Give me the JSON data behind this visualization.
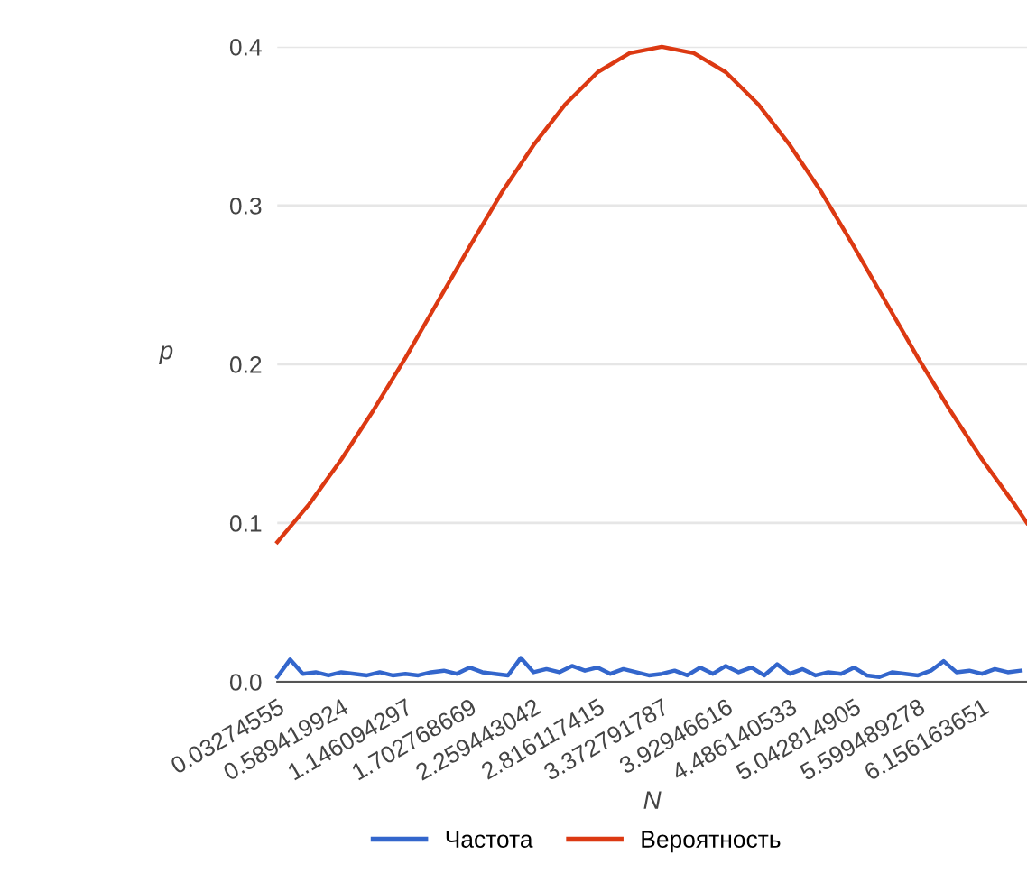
{
  "chart_data": {
    "type": "line",
    "xlabel": "N",
    "ylabel": "p",
    "xlim": [
      0.03274555,
      6.546
    ],
    "xticks": [
      {
        "value": 0.03274555,
        "label": "0.03274555"
      },
      {
        "value": 0.589419924,
        "label": "0.589419924"
      },
      {
        "value": 1.146094297,
        "label": "1.146094297"
      },
      {
        "value": 1.702768669,
        "label": "1.702768669"
      },
      {
        "value": 2.259443042,
        "label": "2.259443042"
      },
      {
        "value": 2.816117415,
        "label": "2.816117415"
      },
      {
        "value": 3.372791787,
        "label": "3.372791787"
      },
      {
        "value": 3.92946616,
        "label": "3.92946616"
      },
      {
        "value": 4.486140533,
        "label": "4.486140533"
      },
      {
        "value": 5.042814905,
        "label": "5.042814905"
      },
      {
        "value": 5.599489278,
        "label": "5.599489278"
      },
      {
        "value": 6.156163651,
        "label": "6.156163651"
      }
    ],
    "ylim": [
      0,
      0.4
    ],
    "yticks": [
      {
        "value": 0,
        "label": "0.0"
      },
      0.1,
      0.2,
      0.3,
      0.4
    ],
    "grid": "y",
    "legend": "bottom",
    "marker": "none",
    "line_style": "solid",
    "series": [
      {
        "name": "Частота",
        "color": "#3366cc",
        "x": [
          0.033,
          0.144,
          0.255,
          0.367,
          0.478,
          0.589,
          0.701,
          0.812,
          0.923,
          1.035,
          1.146,
          1.257,
          1.369,
          1.48,
          1.591,
          1.703,
          1.814,
          1.925,
          2.037,
          2.148,
          2.259,
          2.371,
          2.482,
          2.593,
          2.705,
          2.816,
          2.927,
          3.039,
          3.15,
          3.261,
          3.373,
          3.484,
          3.595,
          3.707,
          3.818,
          3.929,
          4.041,
          4.152,
          4.263,
          4.375,
          4.486,
          4.597,
          4.709,
          4.82,
          4.931,
          5.043,
          5.154,
          5.265,
          5.377,
          5.488,
          5.599,
          5.711,
          5.822,
          5.933,
          6.045,
          6.156,
          6.267,
          6.379,
          6.49
        ],
        "values": [
          0.003,
          0.014,
          0.005,
          0.006,
          0.004,
          0.006,
          0.005,
          0.004,
          0.006,
          0.004,
          0.005,
          0.004,
          0.006,
          0.007,
          0.005,
          0.009,
          0.006,
          0.005,
          0.004,
          0.015,
          0.006,
          0.008,
          0.006,
          0.01,
          0.007,
          0.009,
          0.005,
          0.008,
          0.006,
          0.004,
          0.005,
          0.007,
          0.004,
          0.009,
          0.005,
          0.01,
          0.006,
          0.009,
          0.004,
          0.011,
          0.005,
          0.008,
          0.004,
          0.006,
          0.005,
          0.009,
          0.004,
          0.003,
          0.006,
          0.005,
          0.004,
          0.007,
          0.013,
          0.006,
          0.007,
          0.005,
          0.008,
          0.006,
          0.007
        ]
      },
      {
        "name": "Вероятность",
        "color": "#dc3912",
        "x": [
          0.033,
          0.311,
          0.589,
          0.868,
          1.146,
          1.424,
          1.703,
          1.981,
          2.259,
          2.538,
          2.816,
          3.094,
          3.373,
          3.651,
          3.929,
          4.208,
          4.486,
          4.764,
          5.043,
          5.321,
          5.599,
          5.878,
          6.156,
          6.435,
          6.546
        ],
        "values": [
          0.088,
          0.112,
          0.14,
          0.171,
          0.204,
          0.239,
          0.274,
          0.308,
          0.338,
          0.364,
          0.384,
          0.396,
          0.4,
          0.396,
          0.384,
          0.364,
          0.338,
          0.308,
          0.274,
          0.239,
          0.204,
          0.171,
          0.14,
          0.112,
          0.1
        ]
      }
    ]
  }
}
